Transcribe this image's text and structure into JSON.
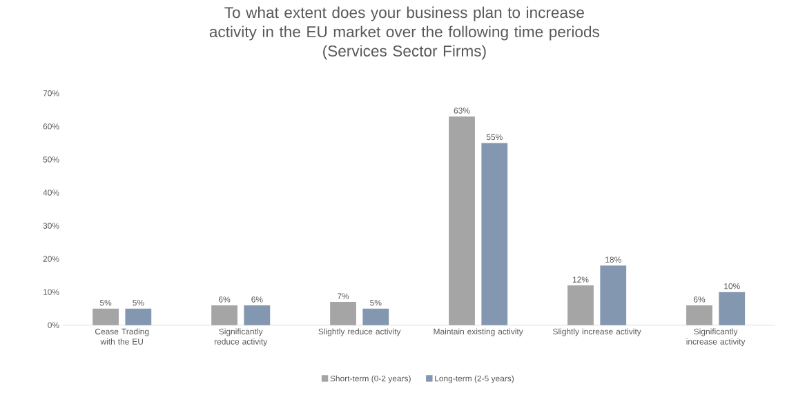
{
  "chart_data": {
    "type": "bar",
    "title": "To what extent does your business plan to increase activity in the EU market over the following time periods",
    "subtitle": "(Services Sector Firms)",
    "categories": [
      "Cease Trading with the EU",
      "Significantly reduce activity",
      "Slightly reduce activity",
      "Maintain existing activity",
      "Slightly increase activity",
      "Significantly increase activity"
    ],
    "series": [
      {
        "name": "Short-term (0-2 years)",
        "color": "#a5a5a5",
        "values": [
          5,
          6,
          7,
          63,
          12,
          6
        ],
        "value_labels": [
          "5%",
          "6%",
          "7%",
          "63%",
          "12%",
          "6%"
        ]
      },
      {
        "name": "Long-term (2-5 years)",
        "color": "#8497b0",
        "values": [
          5,
          6,
          5,
          55,
          18,
          10
        ],
        "value_labels": [
          "5%",
          "6%",
          "5%",
          "55%",
          "18%",
          "10%"
        ]
      }
    ],
    "ylim": [
      0,
      70
    ],
    "yticks": [
      {
        "value": 0,
        "label": "0%"
      },
      {
        "value": 10,
        "label": "10%"
      },
      {
        "value": 20,
        "label": "20%"
      },
      {
        "value": 30,
        "label": "30%"
      },
      {
        "value": 40,
        "label": "40%"
      },
      {
        "value": 50,
        "label": "50%"
      },
      {
        "value": 60,
        "label": "60%"
      },
      {
        "value": 70,
        "label": "70%"
      }
    ],
    "legend": "bottom"
  }
}
